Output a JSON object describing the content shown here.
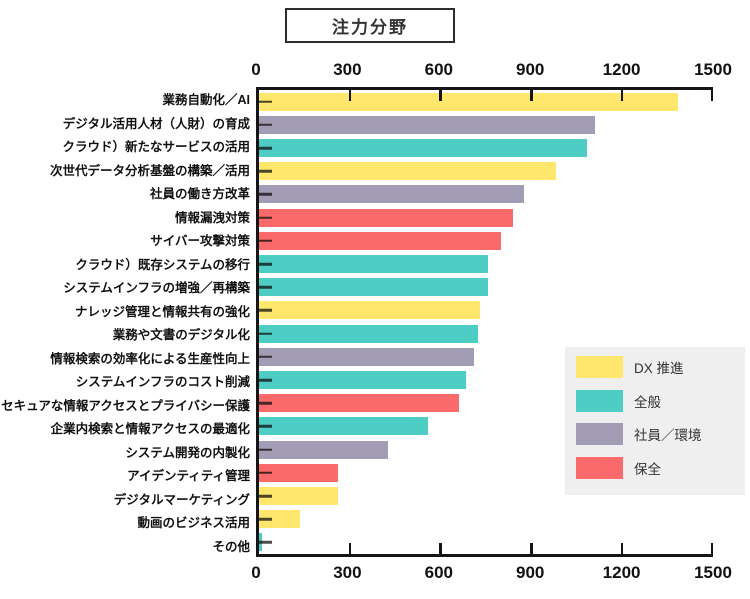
{
  "title": "注力分野",
  "colors": {
    "dx": "#FFE66D",
    "general": "#4ECDC4",
    "staff": "#A29DB4",
    "security": "#FB6A6A",
    "axis": "#151515",
    "legend_bg": "#efefef",
    "background": "#ffffff"
  },
  "chart_data": {
    "type": "bar",
    "orientation": "horizontal",
    "title": "注力分野",
    "xlabel": "",
    "ylabel": "",
    "xlim": [
      0,
      1500
    ],
    "x_ticks": [
      0,
      300,
      600,
      900,
      1200,
      1500
    ],
    "x_ticks_shown": "top and bottom",
    "grid": false,
    "legend_position": "middle-right",
    "categories": [
      "業務自動化／AI",
      "デジタル活用人材（人財）の育成",
      "クラウド）新たなサービスの活用",
      "次世代データ分析基盤の構築／活用",
      "社員の働き方改革",
      "情報漏洩対策",
      "サイバー攻撃対策",
      "クラウド）既存システムの移行",
      "システムインフラの増強／再構築",
      "ナレッジ管理と情報共有の強化",
      "業務や文書のデジタル化",
      "情報検索の効率化による生産性向上",
      "システムインフラのコスト削減",
      "セキュアな情報アクセスとプライバシー保護",
      "企業内検索と情報アクセスの最適化",
      "システム開発の内製化",
      "アイデンティティ管理",
      "デジタルマーケティング",
      "動画のビジネス活用",
      "その他"
    ],
    "values": [
      1385,
      1110,
      1085,
      980,
      875,
      840,
      800,
      755,
      755,
      730,
      725,
      710,
      685,
      660,
      560,
      425,
      260,
      260,
      135,
      10
    ],
    "groups": [
      "dx",
      "staff",
      "general",
      "dx",
      "staff",
      "security",
      "security",
      "general",
      "general",
      "dx",
      "general",
      "staff",
      "general",
      "security",
      "general",
      "staff",
      "security",
      "dx",
      "dx",
      "general"
    ],
    "legend": [
      {
        "key": "dx",
        "label": "DX 推進",
        "color": "#FFE66D"
      },
      {
        "key": "general",
        "label": "全般",
        "color": "#4ECDC4"
      },
      {
        "key": "staff",
        "label": "社員／環境",
        "color": "#A29DB4"
      },
      {
        "key": "security",
        "label": "保全",
        "color": "#FB6A6A"
      }
    ]
  }
}
